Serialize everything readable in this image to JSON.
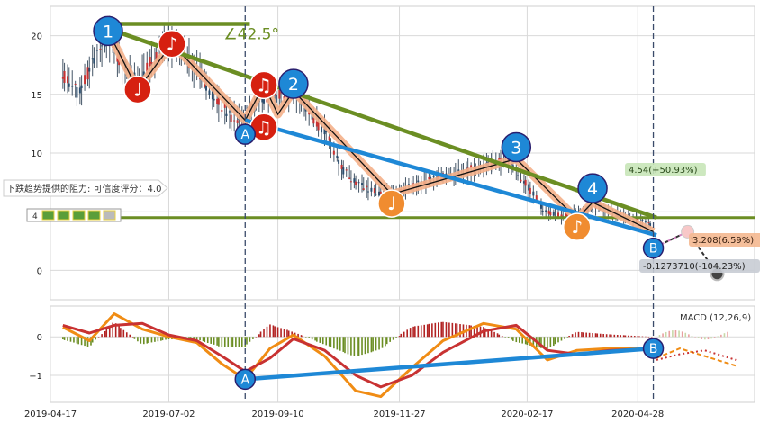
{
  "chart_data": {
    "type": "candlestick-with-macd",
    "price_panel": {
      "ylim": [
        -2.5,
        22.5
      ],
      "yticks": [
        0,
        5,
        10,
        15,
        20
      ],
      "ytick_labels": [
        "0",
        "",
        "10",
        "15",
        "20"
      ],
      "close_series": [
        {
          "x": "2019-04-25",
          "v": 16.8
        },
        {
          "x": "2019-05-05",
          "v": 15.0
        },
        {
          "x": "2019-05-15",
          "v": 18.0
        },
        {
          "x": "2019-05-24",
          "v": 20.0
        },
        {
          "x": "2019-06-03",
          "v": 17.5
        },
        {
          "x": "2019-06-12",
          "v": 16.2
        },
        {
          "x": "2019-06-22",
          "v": 18.0
        },
        {
          "x": "2019-07-02",
          "v": 19.6
        },
        {
          "x": "2019-07-12",
          "v": 18.5
        },
        {
          "x": "2019-07-22",
          "v": 16.8
        },
        {
          "x": "2019-08-02",
          "v": 14.5
        },
        {
          "x": "2019-08-12",
          "v": 13.0
        },
        {
          "x": "2019-08-20",
          "v": 12.8
        },
        {
          "x": "2019-08-30",
          "v": 14.8
        },
        {
          "x": "2019-09-10",
          "v": 14.8
        },
        {
          "x": "2019-09-20",
          "v": 15.3
        },
        {
          "x": "2019-10-01",
          "v": 13.5
        },
        {
          "x": "2019-10-12",
          "v": 11.5
        },
        {
          "x": "2019-10-22",
          "v": 8.6
        },
        {
          "x": "2019-11-03",
          "v": 7.2
        },
        {
          "x": "2019-11-15",
          "v": 6.5
        },
        {
          "x": "2019-11-27",
          "v": 6.8
        },
        {
          "x": "2019-12-08",
          "v": 7.3
        },
        {
          "x": "2019-12-20",
          "v": 7.8
        },
        {
          "x": "2019-12-31",
          "v": 8.2
        },
        {
          "x": "2020-01-12",
          "v": 8.6
        },
        {
          "x": "2020-01-24",
          "v": 9.0
        },
        {
          "x": "2020-02-05",
          "v": 9.4
        },
        {
          "x": "2020-02-17",
          "v": 7.3
        },
        {
          "x": "2020-02-28",
          "v": 5.2
        },
        {
          "x": "2020-03-10",
          "v": 4.6
        },
        {
          "x": "2020-03-22",
          "v": 5.0
        },
        {
          "x": "2020-04-03",
          "v": 5.5
        },
        {
          "x": "2020-04-15",
          "v": 4.8
        },
        {
          "x": "2020-04-28",
          "v": 4.3
        },
        {
          "x": "2020-05-08",
          "v": 3.8
        }
      ],
      "support_line_value": 4.5,
      "resistance_lines": [
        {
          "from": {
            "x": "2019-05-24",
            "v": 20.6
          },
          "to": {
            "x": "2020-05-10",
            "v": 4.5
          }
        },
        {
          "from": {
            "x": "2019-08-20",
            "v": 12.8
          },
          "to": {
            "x": "2020-05-10",
            "v": 3.0
          }
        }
      ],
      "angle_label": "∠42.5°",
      "wave_points": [
        {
          "label": "1",
          "x": "2019-05-24",
          "v": 20.4,
          "style": "blue"
        },
        {
          "label": "2",
          "x": "2019-09-20",
          "v": 15.9,
          "style": "blue"
        },
        {
          "label": "3",
          "x": "2020-02-10",
          "v": 10.5,
          "style": "blue"
        },
        {
          "label": "4",
          "x": "2020-03-30",
          "v": 7.0,
          "style": "blue"
        },
        {
          "label": "A",
          "x": "2019-08-20",
          "v": 11.6,
          "style": "blue-outline"
        },
        {
          "label": "B",
          "x": "2020-05-08",
          "v": 1.9,
          "style": "blue"
        }
      ],
      "notes": [
        {
          "glyph": "♩",
          "x": "2019-06-12",
          "v": 15.4,
          "color": "red"
        },
        {
          "glyph": "♪",
          "x": "2019-07-04",
          "v": 19.3,
          "color": "red"
        },
        {
          "glyph": "♫",
          "x": "2019-09-01",
          "v": 15.8,
          "color": "red"
        },
        {
          "glyph": "♫",
          "x": "2019-09-01",
          "v": 12.2,
          "color": "red"
        },
        {
          "glyph": "♩",
          "x": "2019-11-22",
          "v": 5.7,
          "color": "orange"
        },
        {
          "glyph": "♪",
          "x": "2020-03-20",
          "v": 3.7,
          "color": "orange"
        }
      ],
      "annotations": {
        "resistance_text": "下跌趋势提供的阻力: 可信度评分：4.0",
        "upper_target": "4.54(+50.93%)",
        "mid_target": "3.208(6.59%)",
        "lower_target": "-0.1273710(-104.23%)",
        "left_value": "4"
      }
    },
    "macd_panel": {
      "label": "MACD (12,26,9)",
      "ylim": [
        -1.7,
        0.8
      ],
      "yticks": [
        0,
        -1
      ],
      "ytick_labels": [
        "0",
        "−1"
      ],
      "diff": [
        {
          "x": "2019-04-25",
          "v": 0.25
        },
        {
          "x": "2019-05-12",
          "v": -0.1
        },
        {
          "x": "2019-05-28",
          "v": 0.6
        },
        {
          "x": "2019-06-15",
          "v": 0.2
        },
        {
          "x": "2019-07-02",
          "v": 0.0
        },
        {
          "x": "2019-07-20",
          "v": -0.15
        },
        {
          "x": "2019-08-05",
          "v": -0.7
        },
        {
          "x": "2019-08-20",
          "v": -1.1
        },
        {
          "x": "2019-09-05",
          "v": -0.3
        },
        {
          "x": "2019-09-20",
          "v": 0.05
        },
        {
          "x": "2019-10-10",
          "v": -0.5
        },
        {
          "x": "2019-10-30",
          "v": -1.4
        },
        {
          "x": "2019-11-15",
          "v": -1.55
        },
        {
          "x": "2019-12-05",
          "v": -0.8
        },
        {
          "x": "2019-12-25",
          "v": -0.1
        },
        {
          "x": "2020-01-20",
          "v": 0.35
        },
        {
          "x": "2020-02-10",
          "v": 0.2
        },
        {
          "x": "2020-03-01",
          "v": -0.6
        },
        {
          "x": "2020-03-20",
          "v": -0.35
        },
        {
          "x": "2020-04-10",
          "v": -0.3
        },
        {
          "x": "2020-05-08",
          "v": -0.3
        }
      ],
      "dea": [
        {
          "x": "2019-04-25",
          "v": 0.3
        },
        {
          "x": "2019-05-12",
          "v": 0.1
        },
        {
          "x": "2019-05-28",
          "v": 0.3
        },
        {
          "x": "2019-06-15",
          "v": 0.35
        },
        {
          "x": "2019-07-02",
          "v": 0.05
        },
        {
          "x": "2019-07-20",
          "v": -0.1
        },
        {
          "x": "2019-08-05",
          "v": -0.5
        },
        {
          "x": "2019-08-20",
          "v": -0.9
        },
        {
          "x": "2019-09-05",
          "v": -0.55
        },
        {
          "x": "2019-09-20",
          "v": -0.05
        },
        {
          "x": "2019-10-10",
          "v": -0.35
        },
        {
          "x": "2019-10-30",
          "v": -1.0
        },
        {
          "x": "2019-11-15",
          "v": -1.3
        },
        {
          "x": "2019-12-05",
          "v": -1.0
        },
        {
          "x": "2019-12-25",
          "v": -0.4
        },
        {
          "x": "2020-01-20",
          "v": 0.15
        },
        {
          "x": "2020-02-10",
          "v": 0.3
        },
        {
          "x": "2020-03-01",
          "v": -0.35
        },
        {
          "x": "2020-03-20",
          "v": -0.45
        },
        {
          "x": "2020-04-10",
          "v": -0.35
        },
        {
          "x": "2020-05-08",
          "v": -0.3
        }
      ],
      "divergence_line": {
        "from": {
          "x": "2019-08-20",
          "v": -1.1
        },
        "to": {
          "x": "2020-05-08",
          "v": -0.3
        }
      },
      "points": [
        {
          "label": "A",
          "x": "2019-08-20",
          "v": -1.1
        },
        {
          "label": "B",
          "x": "2020-05-08",
          "v": -0.3
        }
      ]
    },
    "x_axis": {
      "range": [
        "2019-04-17",
        "2020-07-12"
      ],
      "ticks": [
        "2019-04-17",
        "2019-07-02",
        "2019-09-10",
        "2019-11-27",
        "2020-02-17",
        "2020-04-28"
      ]
    },
    "vertical_markers": [
      "2019-08-20",
      "2020-05-08"
    ],
    "colors": {
      "trend_green": "#6b8e23",
      "support_green": "#6b8e23",
      "divergence_blue": "#1e88d6",
      "wave_fill": "#f4b08a",
      "note_red": "#d62010",
      "note_orange": "#f08c30",
      "macd_red": "#c83232",
      "macd_orange": "#f08c14",
      "bar_up": "#b22222",
      "bar_down": "#6b8e23"
    }
  }
}
